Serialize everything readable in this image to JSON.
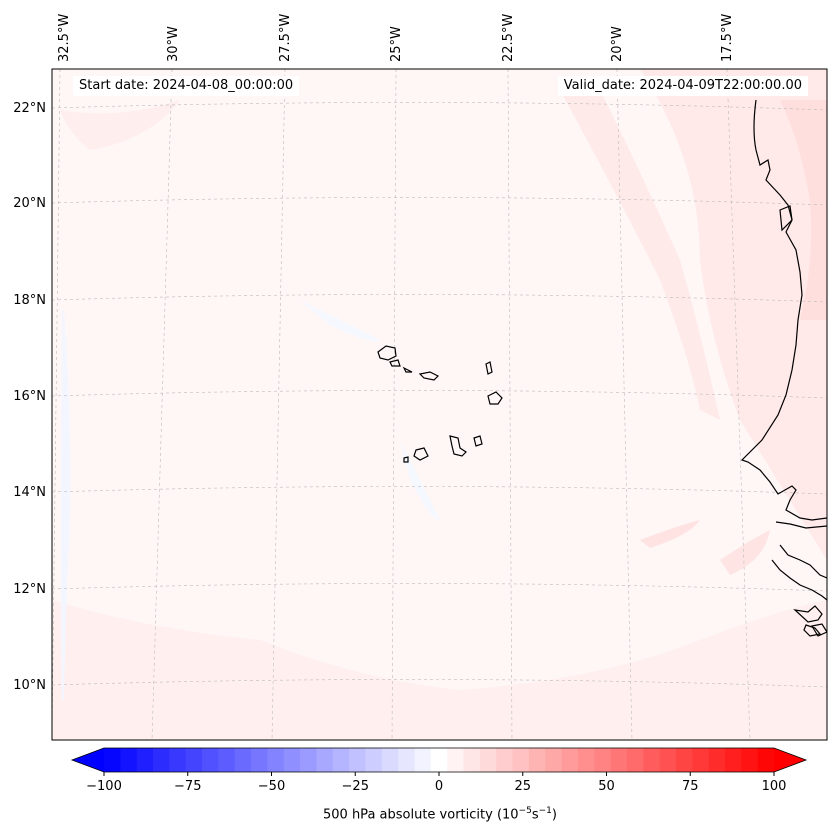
{
  "map": {
    "start_date_text": "Start date: 2024-04-08_00:00:00",
    "valid_date_text": "Valid_date: 2024-04-09T22:00:00.00",
    "lon_labels": [
      "32.5°W",
      "30°W",
      "27.5°W",
      "25°W",
      "22.5°W",
      "20°W",
      "17.5°W"
    ],
    "lat_labels": [
      "22°N",
      "20°N",
      "18°N",
      "16°N",
      "14°N",
      "12°N",
      "10°N"
    ],
    "field": "500 hPa absolute vorticity",
    "regions_shown": [
      "Cabo Verde islands",
      "West African coast (Mauritania, Senegal, Gambia, Guinea-Bissau)"
    ]
  },
  "colorbar": {
    "label_text": "500 hPa absolute vorticity (10",
    "label_exp1": "−5",
    "label_mid": "s",
    "label_exp2": "−1",
    "label_end": ")",
    "tick_labels": [
      "−100",
      "−75",
      "−50",
      "−25",
      "0",
      "25",
      "50",
      "75",
      "100"
    ],
    "min": -100,
    "max": 100,
    "levels": 41,
    "extend": "both",
    "colormap": "bwr",
    "colors": {
      "negative_end": "#0000ff",
      "center": "#ffffff",
      "positive_end": "#ff0000"
    }
  },
  "colors": {
    "background_field": "#fff6f6",
    "land_outline": "#000000",
    "gridline": "#bbbbbb"
  }
}
